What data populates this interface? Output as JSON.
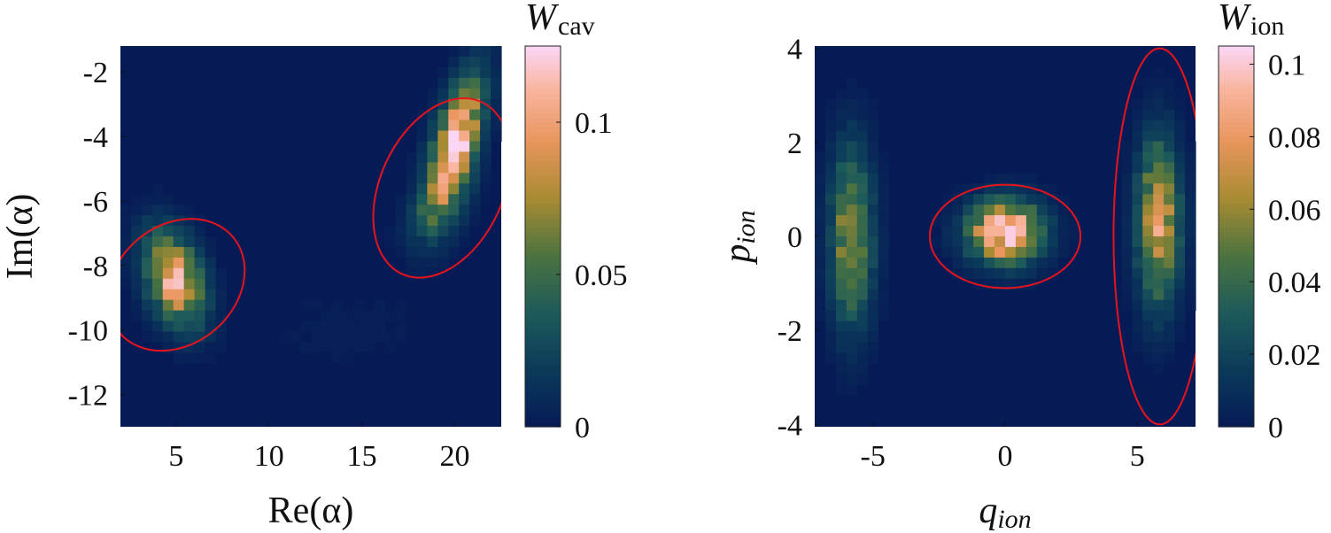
{
  "chart_data": [
    {
      "type": "heatmap",
      "title": "",
      "xlabel": "Re(α)",
      "ylabel": "Im(α)",
      "xlim": [
        2,
        22.5
      ],
      "ylim": [
        -13,
        -1.2
      ],
      "xticks": [
        5,
        10,
        15,
        20
      ],
      "xtick_labels": [
        "5",
        "10",
        "15",
        "20"
      ],
      "yticks": [
        -2,
        -4,
        -6,
        -8,
        -10,
        -12
      ],
      "ytick_labels": [
        "-2",
        "-4",
        "-6",
        "-8",
        "-10",
        "-12"
      ],
      "grid": false,
      "colorbar": {
        "label_main": "W",
        "label_sub": "cav",
        "range": [
          0,
          0.125
        ],
        "ticks": [
          0,
          0.05,
          0.1
        ],
        "tick_labels": [
          "0",
          "0.05",
          "0.1"
        ]
      },
      "blobs": [
        {
          "cx": 4.9,
          "cy": -8.4,
          "sx": 1.1,
          "sy": 1.0,
          "rho": -0.35,
          "peak": 0.1
        },
        {
          "cx": 20.0,
          "cy": -4.3,
          "sx": 1.0,
          "sy": 1.4,
          "rho": 0.6,
          "peak": 0.125
        },
        {
          "cx": 19.0,
          "cy": -6.3,
          "sx": 1.2,
          "sy": 0.8,
          "rho": 0.3,
          "peak": 0.018
        },
        {
          "cx": 14.0,
          "cy": -10.0,
          "sx": 3.0,
          "sy": 1.0,
          "rho": 0.2,
          "peak": 0.004
        }
      ],
      "ellipses": [
        {
          "cx": 5.0,
          "cy": -8.6,
          "rx": 3.2,
          "ry": 2.3,
          "angle_deg": -50,
          "color": "#e8141c"
        },
        {
          "cx": 19.3,
          "cy": -5.6,
          "rx": 5.1,
          "ry": 1.9,
          "angle_deg": 65,
          "color": "#e8141c"
        }
      ]
    },
    {
      "type": "heatmap",
      "title": "",
      "xlabel": "q_ion",
      "ylabel": "p_ion",
      "xlim": [
        -7.2,
        7.2
      ],
      "ylim": [
        -4.05,
        4.05
      ],
      "xticks": [
        -5,
        0,
        5
      ],
      "xtick_labels": [
        "-5",
        "0",
        "5"
      ],
      "yticks": [
        4,
        2,
        0,
        -2,
        -4
      ],
      "ytick_labels": [
        "4",
        "2",
        "0",
        "-2",
        "-4"
      ],
      "grid": false,
      "colorbar": {
        "label_main": "W",
        "label_sub": "ion",
        "range": [
          0,
          0.105
        ],
        "ticks": [
          0,
          0.02,
          0.04,
          0.06,
          0.08,
          0.1
        ],
        "tick_labels": [
          "0",
          "0.02",
          "0.04",
          "0.06",
          "0.08",
          "0.1"
        ]
      },
      "blobs": [
        {
          "cx": -5.8,
          "cy": 0.0,
          "sx": 0.55,
          "sy": 1.3,
          "rho": 0.0,
          "peak": 0.062
        },
        {
          "cx": 0.0,
          "cy": 0.1,
          "sx": 0.95,
          "sy": 0.45,
          "rho": 0.0,
          "peak": 0.105
        },
        {
          "cx": 5.8,
          "cy": 0.3,
          "sx": 0.55,
          "sy": 1.2,
          "rho": 0.0,
          "peak": 0.075
        }
      ],
      "ellipses": [
        {
          "cx": 0.0,
          "cy": 0.0,
          "rx": 2.85,
          "ry": 1.1,
          "angle_deg": 0,
          "color": "#e8141c"
        },
        {
          "cx": 5.85,
          "cy": 0.0,
          "rx": 1.75,
          "ry": 4.0,
          "angle_deg": 0,
          "color": "#e8141c"
        }
      ]
    }
  ],
  "colormap": {
    "stops": [
      [
        0.0,
        "#061a56"
      ],
      [
        0.15,
        "#0b3a5a"
      ],
      [
        0.3,
        "#1d5a5a"
      ],
      [
        0.45,
        "#4b7340"
      ],
      [
        0.6,
        "#a88b32"
      ],
      [
        0.75,
        "#e9955c"
      ],
      [
        0.88,
        "#f8b39a"
      ],
      [
        1.0,
        "#fbd6f6"
      ]
    ],
    "background": "#061a56"
  }
}
